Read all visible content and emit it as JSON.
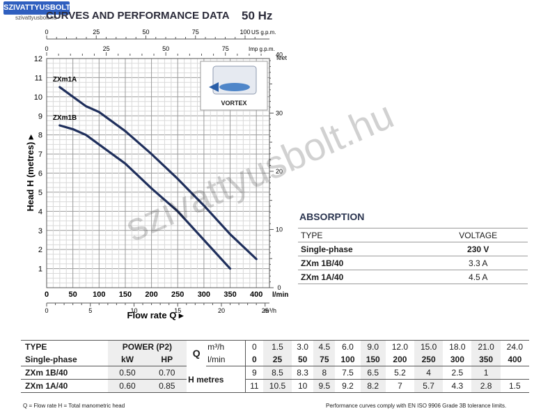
{
  "logo": {
    "text": "SZIVATTYUSBOLT.HU",
    "sub": "szivattyusbolt.hu"
  },
  "header": {
    "title": "CURVES AND PERFORMANCE DATA",
    "frequency": "50 Hz"
  },
  "watermark": "szivattyusbolt.hu",
  "chart_data": {
    "type": "line",
    "xlabel": "Flow rate Q",
    "ylabel": "Head H (metres)",
    "x_unit": "l/min",
    "ylim": [
      0,
      12
    ],
    "xlim": [
      0,
      425
    ],
    "grid": true,
    "series": [
      {
        "name": "ZXm1A",
        "x": [
          25,
          50,
          75,
          100,
          150,
          200,
          250,
          300,
          350,
          400
        ],
        "y": [
          10.5,
          10,
          9.5,
          9.2,
          8.2,
          7,
          5.7,
          4.3,
          2.8,
          1.5
        ]
      },
      {
        "name": "ZXm1B",
        "x": [
          25,
          50,
          75,
          100,
          150,
          200,
          250,
          300,
          350
        ],
        "y": [
          8.5,
          8.3,
          8,
          7.5,
          6.5,
          5.2,
          4,
          2.5,
          1
        ]
      }
    ],
    "y_ticks": [
      "1",
      "2",
      "3",
      "4",
      "5",
      "6",
      "7",
      "8",
      "9",
      "10",
      "11",
      "12"
    ],
    "x_ticks_lmin": [
      "0",
      "50",
      "100",
      "150",
      "200",
      "250",
      "300",
      "350",
      "400",
      "l/min"
    ],
    "x_ticks_m3h": [
      "0",
      "5",
      "10",
      "15",
      "20",
      "25",
      "m³/h"
    ],
    "top_axis_usgpm": {
      "label": "US g.p.m.",
      "ticks": [
        "0",
        "25",
        "50",
        "75",
        "100"
      ]
    },
    "top_axis_imp": {
      "label": "Imp g.p.m.",
      "ticks": [
        "0",
        "25",
        "50",
        "75"
      ]
    },
    "right_axis_feet": {
      "label": "feet",
      "ticks": [
        "0",
        "10",
        "20",
        "30",
        "40"
      ]
    },
    "inset_label": "VORTEX"
  },
  "absorption": {
    "title": "ABSORPTION",
    "rows": [
      [
        "TYPE",
        "VOLTAGE"
      ],
      [
        "Single-phase",
        "230 V"
      ],
      [
        "ZXm 1B/40",
        "3.3 A"
      ],
      [
        "ZXm 1A/40",
        "4.5 A"
      ]
    ]
  },
  "perf_table": {
    "type_label": "TYPE",
    "single_phase": "Single-phase",
    "power_label": "POWER (P2)",
    "kw": "kW",
    "hp": "HP",
    "q": "Q",
    "m3h_unit": "m³/h",
    "lmin_unit": "l/min",
    "h_label": "H metres",
    "q_m3h": [
      "0",
      "1.5",
      "3.0",
      "4.5",
      "6.0",
      "9.0",
      "12.0",
      "15.0",
      "18.0",
      "21.0",
      "24.0"
    ],
    "q_lmin": [
      "0",
      "25",
      "50",
      "75",
      "100",
      "150",
      "200",
      "250",
      "300",
      "350",
      "400"
    ],
    "models": [
      {
        "name": "ZXm 1B/40",
        "kw": "0.50",
        "hp": "0.70",
        "h": [
          "9",
          "8.5",
          "8.3",
          "8",
          "7.5",
          "6.5",
          "5.2",
          "4",
          "2.5",
          "1",
          ""
        ]
      },
      {
        "name": "ZXm 1A/40",
        "kw": "0.60",
        "hp": "0.85",
        "h": [
          "11",
          "10.5",
          "10",
          "9.5",
          "9.2",
          "8.2",
          "7",
          "5.7",
          "4.3",
          "2.8",
          "1.5"
        ]
      }
    ]
  },
  "footer": {
    "left": "Q = Flow rate   H = Total manometric head",
    "right": "Performance curves comply with EN ISO 9906 Grade 3B tolerance limits."
  },
  "colors": {
    "curve": "#1f2f5c",
    "grid": "#bdbdbd",
    "title": "#2b2b3a"
  }
}
